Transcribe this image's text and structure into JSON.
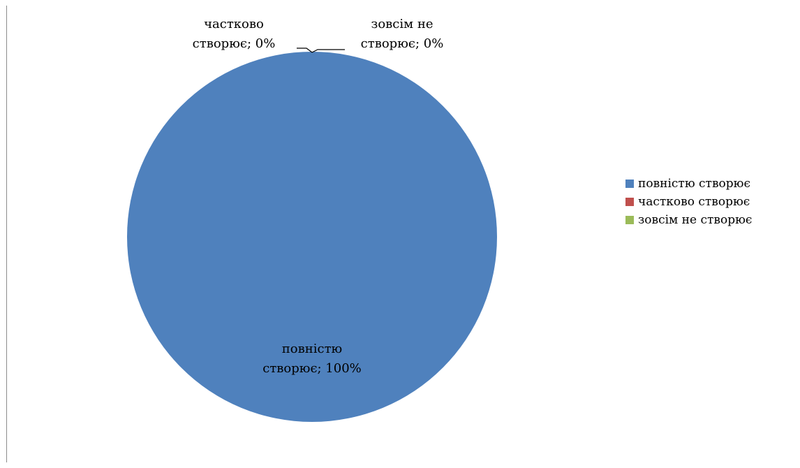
{
  "chart_data": {
    "type": "pie",
    "title": "",
    "categories": [
      "повністю створює",
      "частково створює",
      "зовсім не створює"
    ],
    "values": [
      100,
      0,
      0
    ],
    "unit": "%",
    "colors": [
      "#4f81bd",
      "#c0504d",
      "#9bbb59"
    ],
    "data_labels": [
      [
        "повністю",
        "створює; 100%"
      ],
      [
        "частково",
        "створює; 0%"
      ],
      [
        "зовсім не",
        "створює; 0%"
      ]
    ],
    "legend": {
      "position": "right",
      "entries": [
        "повністю створює",
        "частково створює",
        "зовсім не створює"
      ]
    }
  }
}
